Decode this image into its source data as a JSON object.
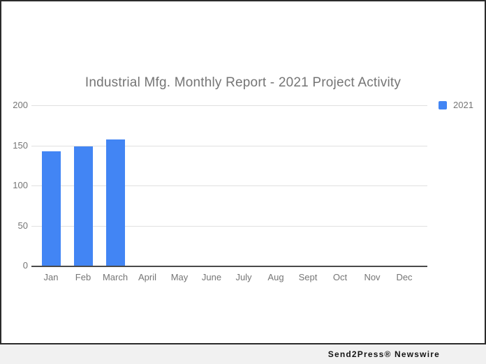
{
  "accent_color": "#4285f4",
  "chart_data": {
    "type": "bar",
    "title": "Industrial Mfg. Monthly Report - 2021 Project Activity",
    "categories": [
      "Jan",
      "Feb",
      "March",
      "April",
      "May",
      "June",
      "July",
      "Aug",
      "Sept",
      "Oct",
      "Nov",
      "Dec"
    ],
    "series": [
      {
        "name": "2021",
        "color": "#4285f4",
        "values": [
          143,
          149,
          157,
          0,
          0,
          0,
          0,
          0,
          0,
          0,
          0,
          0
        ]
      }
    ],
    "xlabel": "",
    "ylabel": "",
    "ylim": [
      0,
      200
    ],
    "yticks": [
      0,
      50,
      100,
      150,
      200
    ],
    "grid": true,
    "legend_position": "top-right",
    "title_color": "#757575",
    "tick_label_color": "#757575",
    "gridline_color": "#e0e0e0"
  },
  "footer": {
    "credit": "Send2Press® Newswire"
  }
}
